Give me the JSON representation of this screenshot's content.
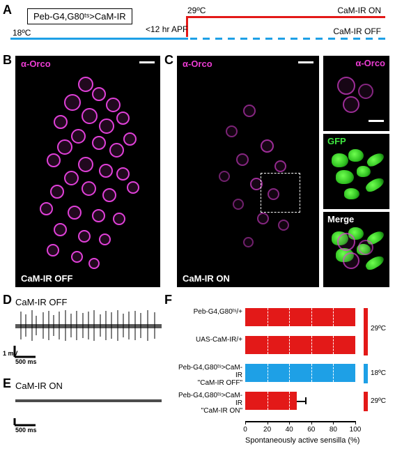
{
  "panelA": {
    "label": "A",
    "genotype": "Peb-G4,G80ᵗˢ>CaM-IR",
    "temp_low": "18ºC",
    "temp_high": "29ºC",
    "apf": "<12 hr APF",
    "state_on": "CaM-IR ON",
    "state_off": "CaM-IR OFF",
    "color_blue": "#1ea0e6",
    "color_red": "#e31918"
  },
  "panelB": {
    "label": "B",
    "antibody": "α-Orco",
    "state": "CaM-IR OFF"
  },
  "panelC": {
    "label": "C",
    "antibody": "α-Orco",
    "state": "CaM-IR ON",
    "inset1": "α-Orco",
    "inset2": "GFP",
    "inset3": "Merge"
  },
  "panelD": {
    "label": "D",
    "title": "CaM-IR OFF",
    "scale_y": "1 mV",
    "scale_x": "500 ms"
  },
  "panelE": {
    "label": "E",
    "title": "CaM-IR ON",
    "scale_x": "500 ms"
  },
  "panelF": {
    "label": "F",
    "xlabel": "Spontaneously active sensilla (%)",
    "xlim": [
      0,
      100
    ],
    "xtick_step": 20,
    "bar_color_red": "#e31918",
    "bar_color_blue": "#1ea0e6",
    "temp_high": "29ºC",
    "temp_low": "18ºC",
    "rows": [
      {
        "label": "Peb-G4,G80ᵗˢ/+",
        "value": 100,
        "err": 0,
        "color": "#e31918",
        "temp": "29ºC"
      },
      {
        "label": "UAS-CaM-IR/+",
        "value": 100,
        "err": 0,
        "color": "#e31918",
        "temp": "29ºC"
      },
      {
        "label": "Peb-G4,G80ᵗˢ>CaM-IR\n\"CaM-IR OFF\"",
        "value": 100,
        "err": 0,
        "color": "#1ea0e6",
        "temp": "18ºC"
      },
      {
        "label": "Peb-G4,G80ᵗˢ>CaM-IR\n\"CaM-IR ON\"",
        "value": 47,
        "err": 8,
        "color": "#e31918",
        "temp": "29ºC"
      }
    ]
  }
}
